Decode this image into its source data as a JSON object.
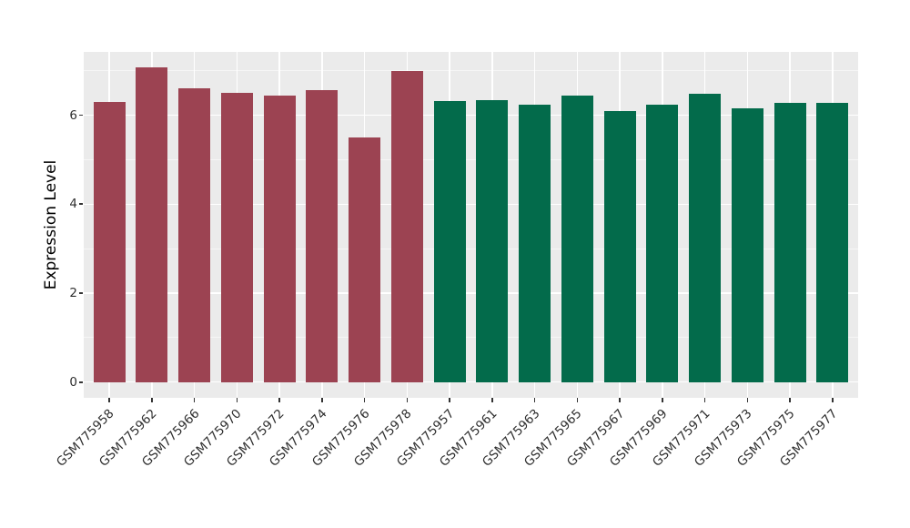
{
  "chart_data": {
    "type": "bar",
    "title": "",
    "xlabel": "",
    "ylabel": "Expression Level",
    "categories": [
      "GSM775958",
      "GSM775962",
      "GSM775966",
      "GSM775970",
      "GSM775972",
      "GSM775974",
      "GSM775976",
      "GSM775978",
      "GSM775957",
      "GSM775961",
      "GSM775963",
      "GSM775965",
      "GSM775967",
      "GSM775969",
      "GSM775971",
      "GSM775973",
      "GSM775975",
      "GSM775977"
    ],
    "values": [
      6.3,
      7.07,
      6.61,
      6.51,
      6.44,
      6.56,
      5.49,
      7.0,
      6.31,
      6.34,
      6.23,
      6.44,
      6.09,
      6.23,
      6.48,
      6.16,
      6.28,
      6.28
    ],
    "bar_colors": [
      "#9C4352",
      "#9C4352",
      "#9C4352",
      "#9C4352",
      "#9C4352",
      "#9C4352",
      "#9C4352",
      "#9C4352",
      "#036B4B",
      "#036B4B",
      "#036B4B",
      "#036B4B",
      "#036B4B",
      "#036B4B",
      "#036B4B",
      "#036B4B",
      "#036B4B",
      "#036B4B"
    ],
    "group_colors": {
      "left_group_red": "#9C4352",
      "right_group_green": "#036B4B"
    },
    "yticks": [
      0,
      2,
      4,
      6
    ],
    "minor_gridlines": [
      1,
      3,
      5,
      7
    ],
    "ylim": [
      0,
      7.42
    ],
    "grid": true,
    "legend_position": "none",
    "panel_bg": "#EBEBEB",
    "gridline_color": "#FFFFFF",
    "bar_width_ratio": 0.75
  }
}
